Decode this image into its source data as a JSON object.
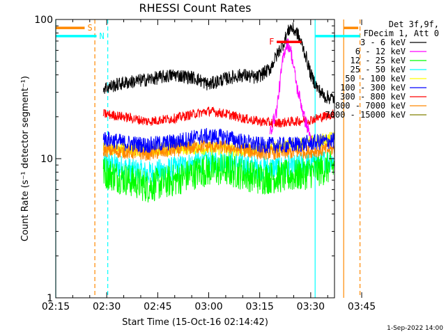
{
  "chart_data": {
    "type": "line",
    "title": "RHESSI Count Rates",
    "xlabel": "Start Time (15-Oct-16 02:14:42)",
    "ylabel": "Count Rate (s⁻¹ detector segment⁻¹)",
    "y_scale": "log",
    "ylim": [
      1,
      100
    ],
    "y_ticks": [
      {
        "v": 1,
        "label": "1"
      },
      {
        "v": 10,
        "label": "10"
      },
      {
        "v": 100,
        "label": "100"
      }
    ],
    "xlim_min": [
      135,
      217
    ],
    "x_ticks": [
      {
        "m": 135,
        "label": "02:15"
      },
      {
        "m": 150,
        "label": "02:30"
      },
      {
        "m": 165,
        "label": "02:45"
      },
      {
        "m": 180,
        "label": "03:00"
      },
      {
        "m": 195,
        "label": "03:15"
      },
      {
        "m": 210,
        "label": "03:30"
      },
      {
        "m": 225,
        "label": "03:45"
      }
    ],
    "legend_header": [
      "Det 3f,9f,",
      "FDecim 1, Att 0"
    ],
    "legend_placement": "right",
    "series": [
      {
        "name": "3 - 6 keV",
        "color": "#000000",
        "x": [
          149,
          155,
          162,
          170,
          176,
          180,
          184,
          190,
          194,
          198,
          200,
          202,
          204,
          206,
          208,
          210,
          212,
          214,
          217
        ],
        "y": [
          32,
          35,
          37,
          40,
          38,
          34,
          37,
          40,
          38,
          44,
          55,
          68,
          88,
          80,
          60,
          40,
          32,
          28,
          27
        ]
      },
      {
        "name": "6 - 12 keV",
        "color": "#ff00ff",
        "x": [
          198,
          200,
          201,
          202,
          203,
          204,
          205,
          206,
          208,
          210
        ],
        "y": [
          15,
          22,
          35,
          55,
          68,
          62,
          45,
          32,
          20,
          14
        ]
      },
      {
        "name": "12 - 25 keV",
        "color": "#00ff00",
        "x": [
          149,
          155,
          162,
          170,
          178,
          185,
          190,
          195,
          200,
          205,
          210,
          217
        ],
        "y": [
          8,
          7.2,
          6.3,
          7,
          8.2,
          8.3,
          7.8,
          7.2,
          7.4,
          7.5,
          8,
          8.8
        ]
      },
      {
        "name": "25 - 50 keV",
        "color": "#00ffff",
        "x": [
          149,
          155,
          162,
          170,
          178,
          185,
          190,
          195,
          200,
          205,
          210,
          217
        ],
        "y": [
          9.3,
          8.6,
          7.8,
          8.5,
          9.5,
          9.6,
          9,
          8.5,
          8.6,
          8.7,
          9.2,
          9.8
        ]
      },
      {
        "name": "50 - 100 keV",
        "color": "#ffff00",
        "x": [
          149,
          160,
          175,
          190,
          205,
          217
        ],
        "y": [
          12,
          11.5,
          12,
          11.5,
          12.5,
          14
        ]
      },
      {
        "name": "100 - 300 keV",
        "color": "#0000ff",
        "x": [
          149,
          155,
          162,
          170,
          178,
          185,
          190,
          195,
          200,
          205,
          210,
          217
        ],
        "y": [
          14,
          13,
          12.5,
          13.2,
          14.5,
          14.3,
          13.2,
          12.5,
          12.5,
          12.6,
          13,
          13.5
        ]
      },
      {
        "name": "300 - 800 keV",
        "color": "#ff0000",
        "x": [
          149,
          155,
          162,
          170,
          176,
          180,
          185,
          190,
          195,
          200,
          205,
          210,
          217
        ],
        "y": [
          21,
          20,
          18.5,
          19.5,
          21,
          22,
          21,
          19.5,
          18.5,
          18,
          18.5,
          19,
          21
        ]
      },
      {
        "name": "800 - 7000 keV",
        "color": "#ff8800",
        "x": [
          149,
          155,
          162,
          170,
          178,
          185,
          190,
          195,
          200,
          205,
          210,
          217
        ],
        "y": [
          11.5,
          11.2,
          10.8,
          11.5,
          12.3,
          12.1,
          11.5,
          11,
          11,
          11.1,
          11.3,
          11.7
        ]
      },
      {
        "name": "7000 - 15000 keV",
        "color": "#808000",
        "x": [],
        "y": []
      }
    ],
    "markers": {
      "vertical_lines": [
        {
          "m": 135,
          "color": "#00ffff",
          "dash": false
        },
        {
          "m": 146.5,
          "color": "#ff8800",
          "dash": true
        },
        {
          "m": 150.3,
          "color": "#00ffff",
          "dash": true
        },
        {
          "m": 211.3,
          "color": "#00ffff",
          "dash": false
        },
        {
          "m": 219.7,
          "color": "#ff8800",
          "dash": false
        },
        {
          "m": 224.5,
          "color": "#ff8800",
          "dash": true
        }
      ],
      "bars": [
        {
          "label": "S",
          "color": "#ff8800",
          "m0": 135,
          "m1": 143.5,
          "y": 87
        },
        {
          "label": "N",
          "color": "#00ffff",
          "m0": 135,
          "m1": 147,
          "y": 76
        },
        {
          "label": "",
          "color": "#ff8800",
          "m0": 219.8,
          "m1": 224,
          "y": 87
        },
        {
          "label": "",
          "color": "#00ffff",
          "m0": 211.4,
          "m1": 224.5,
          "y": 76
        },
        {
          "label": "F",
          "color": "#ff0000",
          "m0": 200,
          "m1": 207.3,
          "y": 69
        }
      ]
    }
  },
  "footer": "1-Sep-2022 14:00"
}
